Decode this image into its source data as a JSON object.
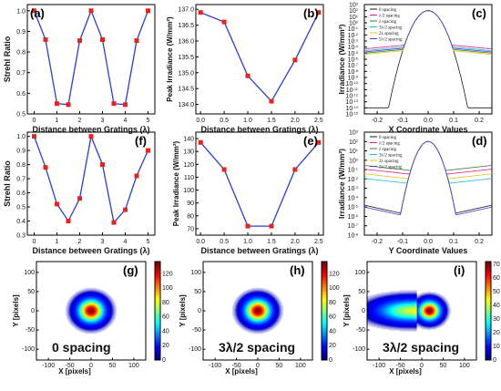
{
  "chart_data": [
    {
      "panel": "(a)",
      "type": "line",
      "xlabel": "Distance between Gratings (λ)",
      "ylabel": "Strehl Ratio",
      "x": [
        0,
        0.5,
        1,
        1.5,
        2,
        2.5,
        3,
        3.5,
        4,
        4.5,
        5
      ],
      "y": [
        1.0,
        0.86,
        0.55,
        0.545,
        0.855,
        1.0,
        0.86,
        0.55,
        0.545,
        0.855,
        1.0
      ],
      "xlim": [
        -0.3,
        5.3
      ],
      "ylim": [
        0.5,
        1.03
      ],
      "xticks": [
        0,
        1,
        2,
        3,
        4,
        5
      ],
      "yticks": [
        0.5,
        0.6,
        0.7,
        0.8,
        0.9,
        1.0
      ],
      "line_color": "#2a3fd1",
      "marker_color": "#e8231f"
    },
    {
      "panel": "(b)",
      "type": "line",
      "xlabel": "Distance between Gratings (λ)",
      "ylabel": "Peak Irradiance (W/mm²)",
      "x": [
        0,
        0.5,
        1,
        1.5,
        2,
        2.5
      ],
      "y": [
        136.9,
        136.6,
        134.9,
        134.1,
        135.4,
        136.9
      ],
      "xlim": [
        -0.1,
        2.6
      ],
      "ylim": [
        133.7,
        137.15
      ],
      "xticks": [
        0.0,
        0.5,
        1.0,
        1.5,
        2.0,
        2.5
      ],
      "yticks": [
        134.0,
        134.5,
        135.0,
        135.5,
        136.0,
        136.5,
        137.0
      ],
      "line_color": "#2a3fd1",
      "marker_color": "#e8231f"
    },
    {
      "panel": "(c)",
      "type": "line",
      "yscale": "log",
      "xlabel": "X Coordinate Values",
      "ylabel": "Irradiance (W/mm²)",
      "xlim": [
        -0.25,
        0.25
      ],
      "ylim_exp": [
        -15,
        3
      ],
      "xticks": [
        -0.2,
        -0.1,
        0.0,
        0.1,
        0.2
      ],
      "legend": [
        "0 spacing",
        "λ/2 spacing",
        "λ spacing",
        "3λ/2 spacing",
        "2λ spacing",
        "5λ/2 spacing"
      ],
      "series_colors": [
        "#1a1a1a",
        "#d81b8c",
        "#3a7d2c",
        "#1fb7d1",
        "#e0c31a",
        "#4040d8"
      ]
    },
    {
      "panel": "(f)",
      "type": "line",
      "xlabel": "Distance between Gratings (λ)",
      "ylabel": "Strehl Ratio",
      "x": [
        0,
        0.5,
        1,
        1.5,
        2,
        2.5,
        3,
        3.5,
        4,
        4.5,
        5
      ],
      "y": [
        1.0,
        0.78,
        0.52,
        0.4,
        0.56,
        1.0,
        0.8,
        0.39,
        0.48,
        0.72,
        0.9
      ],
      "xlim": [
        -0.3,
        5.3
      ],
      "ylim": [
        0.3,
        1.03
      ],
      "xticks": [
        0,
        1,
        2,
        3,
        4,
        5
      ],
      "yticks": [
        0.3,
        0.4,
        0.5,
        0.6,
        0.7,
        0.8,
        0.9,
        1.0
      ],
      "line_color": "#2a3fd1",
      "marker_color": "#e8231f"
    },
    {
      "panel": "(e)",
      "type": "line",
      "xlabel": "Distance between Gratings (λ)",
      "ylabel": "Peak Irradiance (W/mm²)",
      "x": [
        0,
        0.5,
        1,
        1.5,
        2,
        2.5
      ],
      "y": [
        137,
        116,
        72,
        72,
        116,
        137
      ],
      "xlim": [
        -0.1,
        2.6
      ],
      "ylim": [
        65,
        145
      ],
      "xticks": [
        0.0,
        0.5,
        1.0,
        1.5,
        2.0,
        2.5
      ],
      "yticks": [
        70,
        80,
        90,
        100,
        110,
        120,
        130,
        140
      ],
      "line_color": "#2a3fd1",
      "marker_color": "#e8231f"
    },
    {
      "panel": "(d)",
      "type": "line",
      "yscale": "log",
      "xlabel": "Y Coordinate Values",
      "ylabel": "Irradiance (W/mm²)",
      "xlim": [
        -0.25,
        0.25
      ],
      "ylim_exp": [
        -8,
        3
      ],
      "xticks": [
        -0.2,
        -0.1,
        0.0,
        0.1,
        0.2
      ],
      "legend": [
        "0 spacing",
        "λ/2 spacing",
        "λ spacing",
        "3λ/2 spacing",
        "2λ spacing",
        "5λ/2 spacing"
      ],
      "series_colors": [
        "#1a1a1a",
        "#d81b8c",
        "#3a7d2c",
        "#1fb7d1",
        "#e0c31a",
        "#4040d8"
      ]
    },
    {
      "panel": "(g)",
      "type": "heatmap",
      "caption": "0 spacing",
      "xlabel": "X [pixels]",
      "ylabel": "Y [pixels]",
      "xticks": [
        -100,
        -50,
        0,
        50,
        100
      ],
      "yticks": [
        100,
        50,
        0,
        -50,
        -100
      ],
      "colorbar_ticks": [
        0,
        20,
        40,
        60,
        80,
        100,
        120
      ],
      "colorbar_max": 137,
      "spots": [
        {
          "x": 0,
          "y": 0,
          "sigma": 18
        }
      ]
    },
    {
      "panel": "(h)",
      "type": "heatmap",
      "caption": "3λ/2 spacing",
      "xlabel": "X [pixels]",
      "ylabel": "Y [pixels]",
      "xticks": [
        -100,
        -50,
        0,
        50,
        100
      ],
      "yticks": [
        100,
        50,
        0,
        -50,
        -100
      ],
      "colorbar_ticks": [
        0,
        20,
        40,
        60,
        80,
        100,
        120
      ],
      "colorbar_max": 137,
      "spots": [
        {
          "x": 0,
          "y": 0,
          "sigma": 18
        }
      ]
    },
    {
      "panel": "(i)",
      "type": "heatmap",
      "caption": "3λ/2 spacing",
      "xlabel": "X [pixels]",
      "ylabel": "Y [pixels]",
      "xticks": [
        -100,
        -50,
        0,
        50,
        100
      ],
      "yticks": [
        100,
        50,
        0,
        -50,
        -100
      ],
      "colorbar_ticks": [
        0,
        10,
        20,
        30,
        40,
        50,
        60,
        70
      ],
      "colorbar_max": 72,
      "spots": [
        {
          "x": 18,
          "y": 0,
          "sigma": 15
        },
        {
          "x": -28,
          "y": 0,
          "sigma": 17
        }
      ]
    }
  ]
}
